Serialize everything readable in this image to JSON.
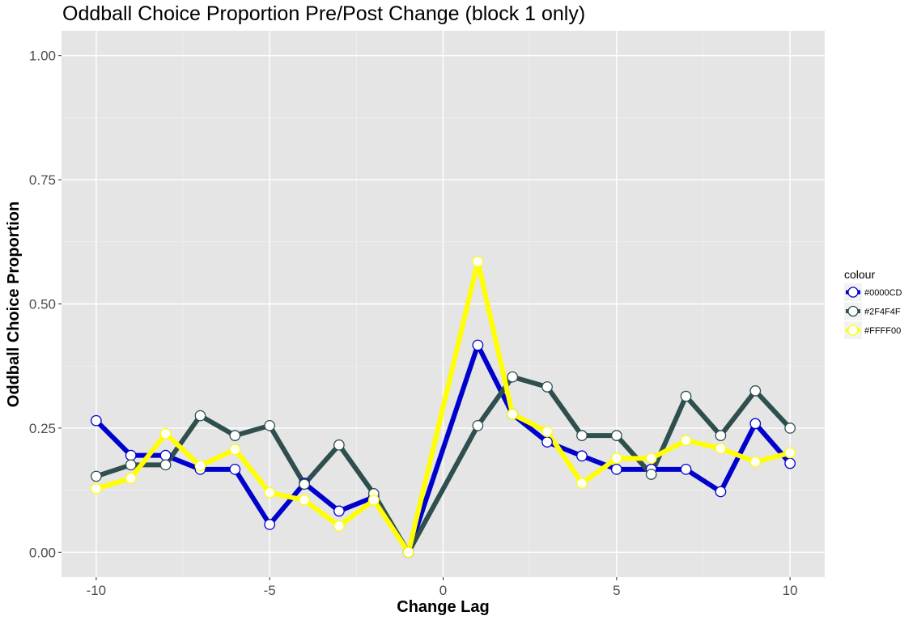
{
  "chart_data": {
    "type": "line",
    "title": "Oddball Choice Proportion Pre/Post Change (block 1 only)",
    "xlabel": "Change Lag",
    "ylabel": "Oddball Choice Proportion",
    "xlim": [
      -11,
      11
    ],
    "ylim": [
      -0.05,
      1.05
    ],
    "xticks": [
      -10,
      -5,
      0,
      5,
      10
    ],
    "xtick_labels": [
      "-10",
      "-5",
      "0",
      "5",
      "10"
    ],
    "yticks": [
      0,
      0.25,
      0.5,
      0.75,
      1.0
    ],
    "ytick_labels": [
      "0.00",
      "0.25",
      "0.50",
      "0.75",
      "1.00"
    ],
    "grid": true,
    "legend_title": "colour",
    "legend_position": "right",
    "x": [
      -10,
      -9,
      -8,
      -7,
      -6,
      -5,
      -4,
      -3,
      -2,
      -1,
      1,
      2,
      3,
      4,
      5,
      6,
      7,
      8,
      9,
      10
    ],
    "series": [
      {
        "name": "#0000CD",
        "color": "#0000CD",
        "values": [
          0.265,
          0.195,
          0.195,
          0.167,
          0.167,
          0.056,
          0.139,
          0.083,
          0.111,
          0.0,
          0.417,
          0.278,
          0.222,
          0.194,
          0.167,
          0.167,
          0.167,
          0.122,
          0.259,
          0.179
        ]
      },
      {
        "name": "#2F4F4F",
        "color": "#2F4F4F",
        "values": [
          0.153,
          0.176,
          0.176,
          0.275,
          0.235,
          0.255,
          0.137,
          0.216,
          0.118,
          0.0,
          0.255,
          0.353,
          0.333,
          0.235,
          0.235,
          0.157,
          0.314,
          0.235,
          0.325,
          0.25
        ]
      },
      {
        "name": "#FFFF00",
        "color": "#FFFF00",
        "values": [
          0.128,
          0.149,
          0.239,
          0.174,
          0.207,
          0.12,
          0.105,
          0.053,
          0.105,
          0.0,
          0.585,
          0.278,
          0.243,
          0.139,
          0.189,
          0.189,
          0.225,
          0.209,
          0.182,
          0.2
        ]
      }
    ]
  }
}
